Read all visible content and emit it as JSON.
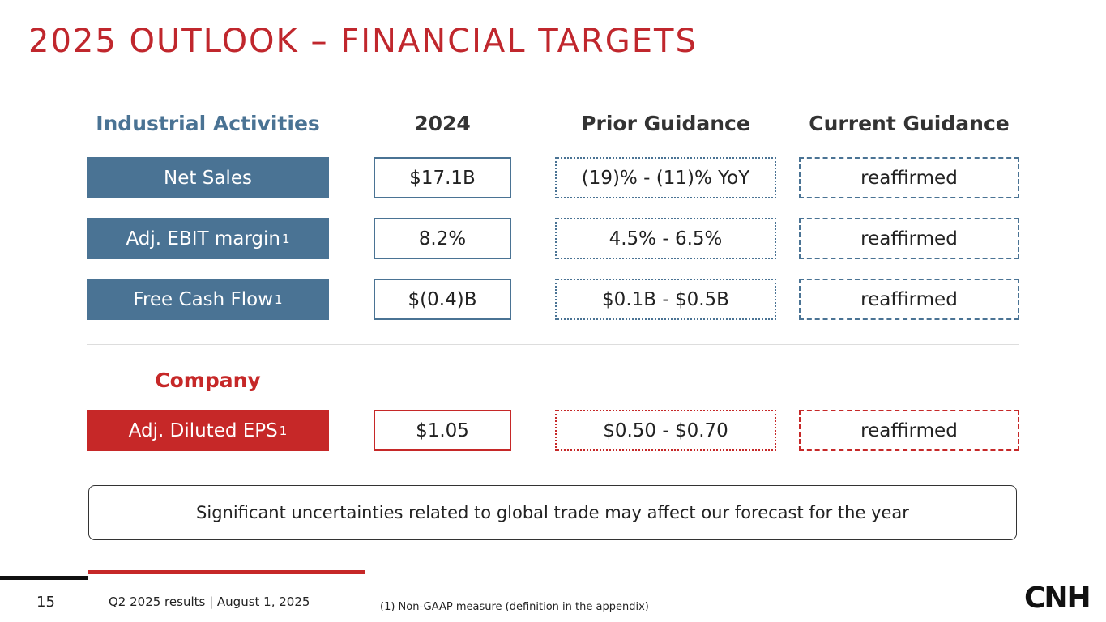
{
  "title": "2025 OUTLOOK – FINANCIAL TARGETS",
  "columns": [
    "2024",
    "Prior Guidance",
    "Current Guidance"
  ],
  "industrial": {
    "header": "Industrial Activities",
    "rows": [
      {
        "label": "Net Sales",
        "values": [
          "$17.1B",
          "(19)% - (11)% YoY",
          "reaffirmed"
        ]
      },
      {
        "label": "Adj. EBIT margin",
        "sup": "1",
        "values": [
          "8.2%",
          "4.5% - 6.5%",
          "reaffirmed"
        ]
      },
      {
        "label": "Free Cash Flow",
        "sup": "1",
        "values": [
          "$(0.4)B",
          "$0.1B - $0.5B",
          "reaffirmed"
        ]
      }
    ]
  },
  "company": {
    "header": "Company",
    "rows": [
      {
        "label": "Adj. Diluted EPS",
        "sup": "1",
        "values": [
          "$1.05",
          "$0.50 - $0.70",
          "reaffirmed"
        ]
      }
    ]
  },
  "note": "Significant uncertainties related to global trade may affect our forecast for the year",
  "footer": {
    "page": "15",
    "event": "Q2 2025 results | August 1, 2025",
    "footnote": "(1) Non-GAAP measure (definition in the appendix)",
    "logo": "CNH"
  }
}
